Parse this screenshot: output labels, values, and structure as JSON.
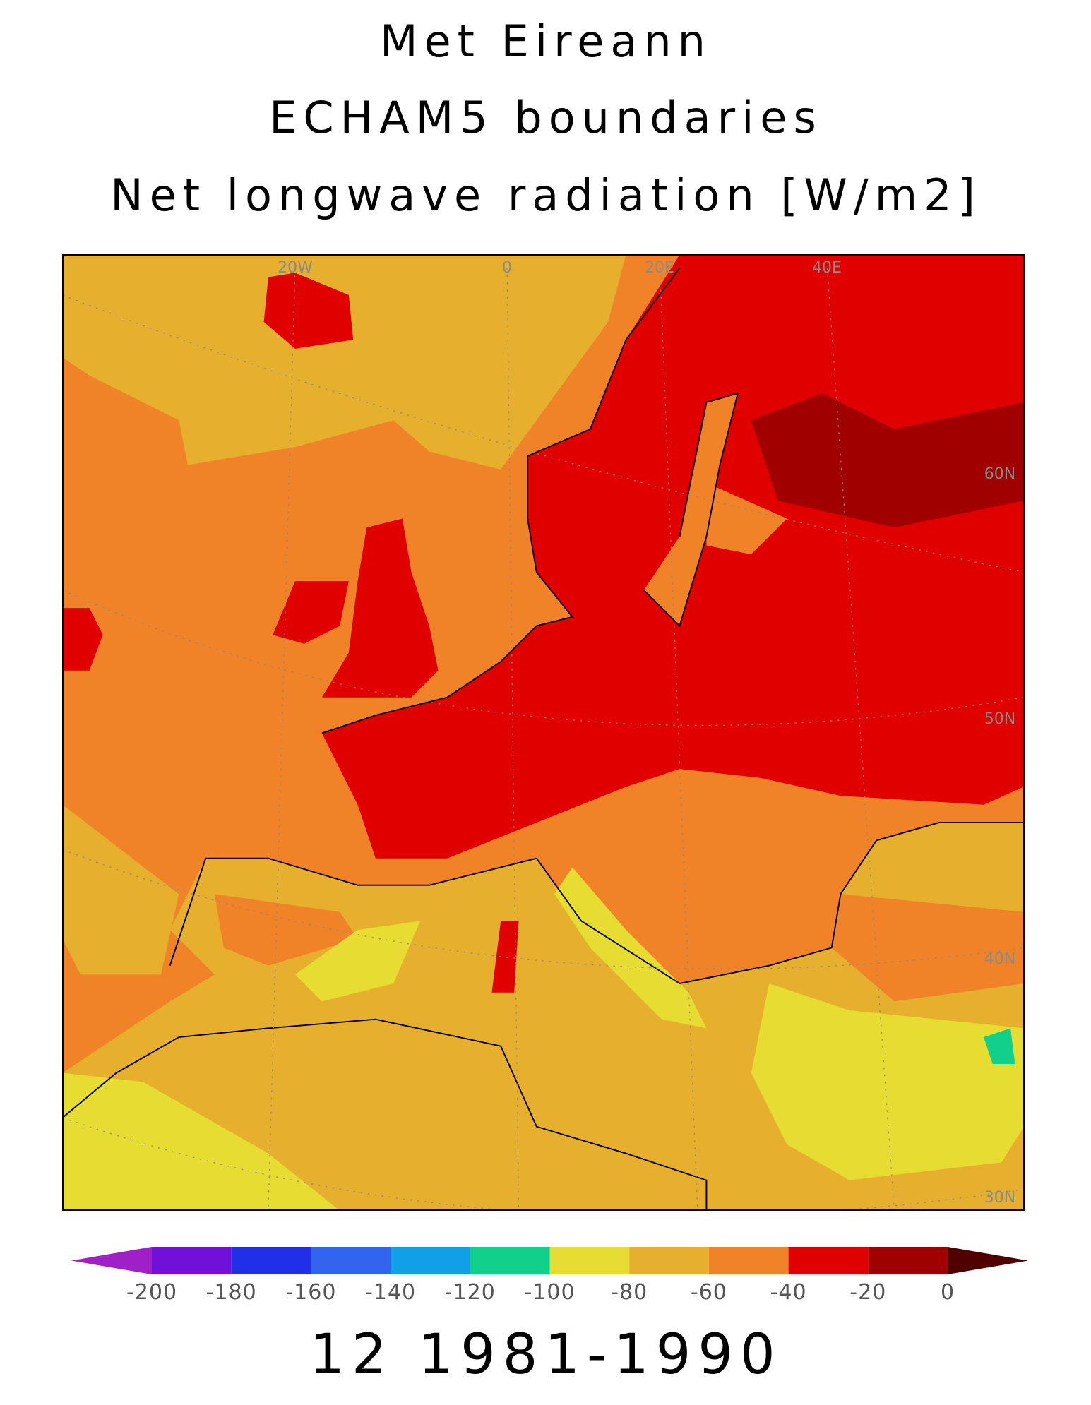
{
  "header": {
    "lines": [
      "Met Eireann",
      "ECHAM5 boundaries",
      "Net longwave radiation [W/m2]"
    ]
  },
  "map": {
    "graticule_labels": [
      "20W",
      "0",
      "20E",
      "40E",
      "60N",
      "50N",
      "40N",
      "30N"
    ]
  },
  "colorbar": {
    "levels": [
      -200,
      -180,
      -160,
      -140,
      -120,
      -100,
      -80,
      -60,
      -40,
      -20,
      0
    ],
    "colors": [
      "#a020c8",
      "#7010d8",
      "#2030e6",
      "#3264f0",
      "#10a0e6",
      "#10d08c",
      "#e6dc32",
      "#e6af2d",
      "#f08228",
      "#e00000",
      "#a00000",
      "#500000"
    ]
  },
  "footer": "12 1981-1990"
}
